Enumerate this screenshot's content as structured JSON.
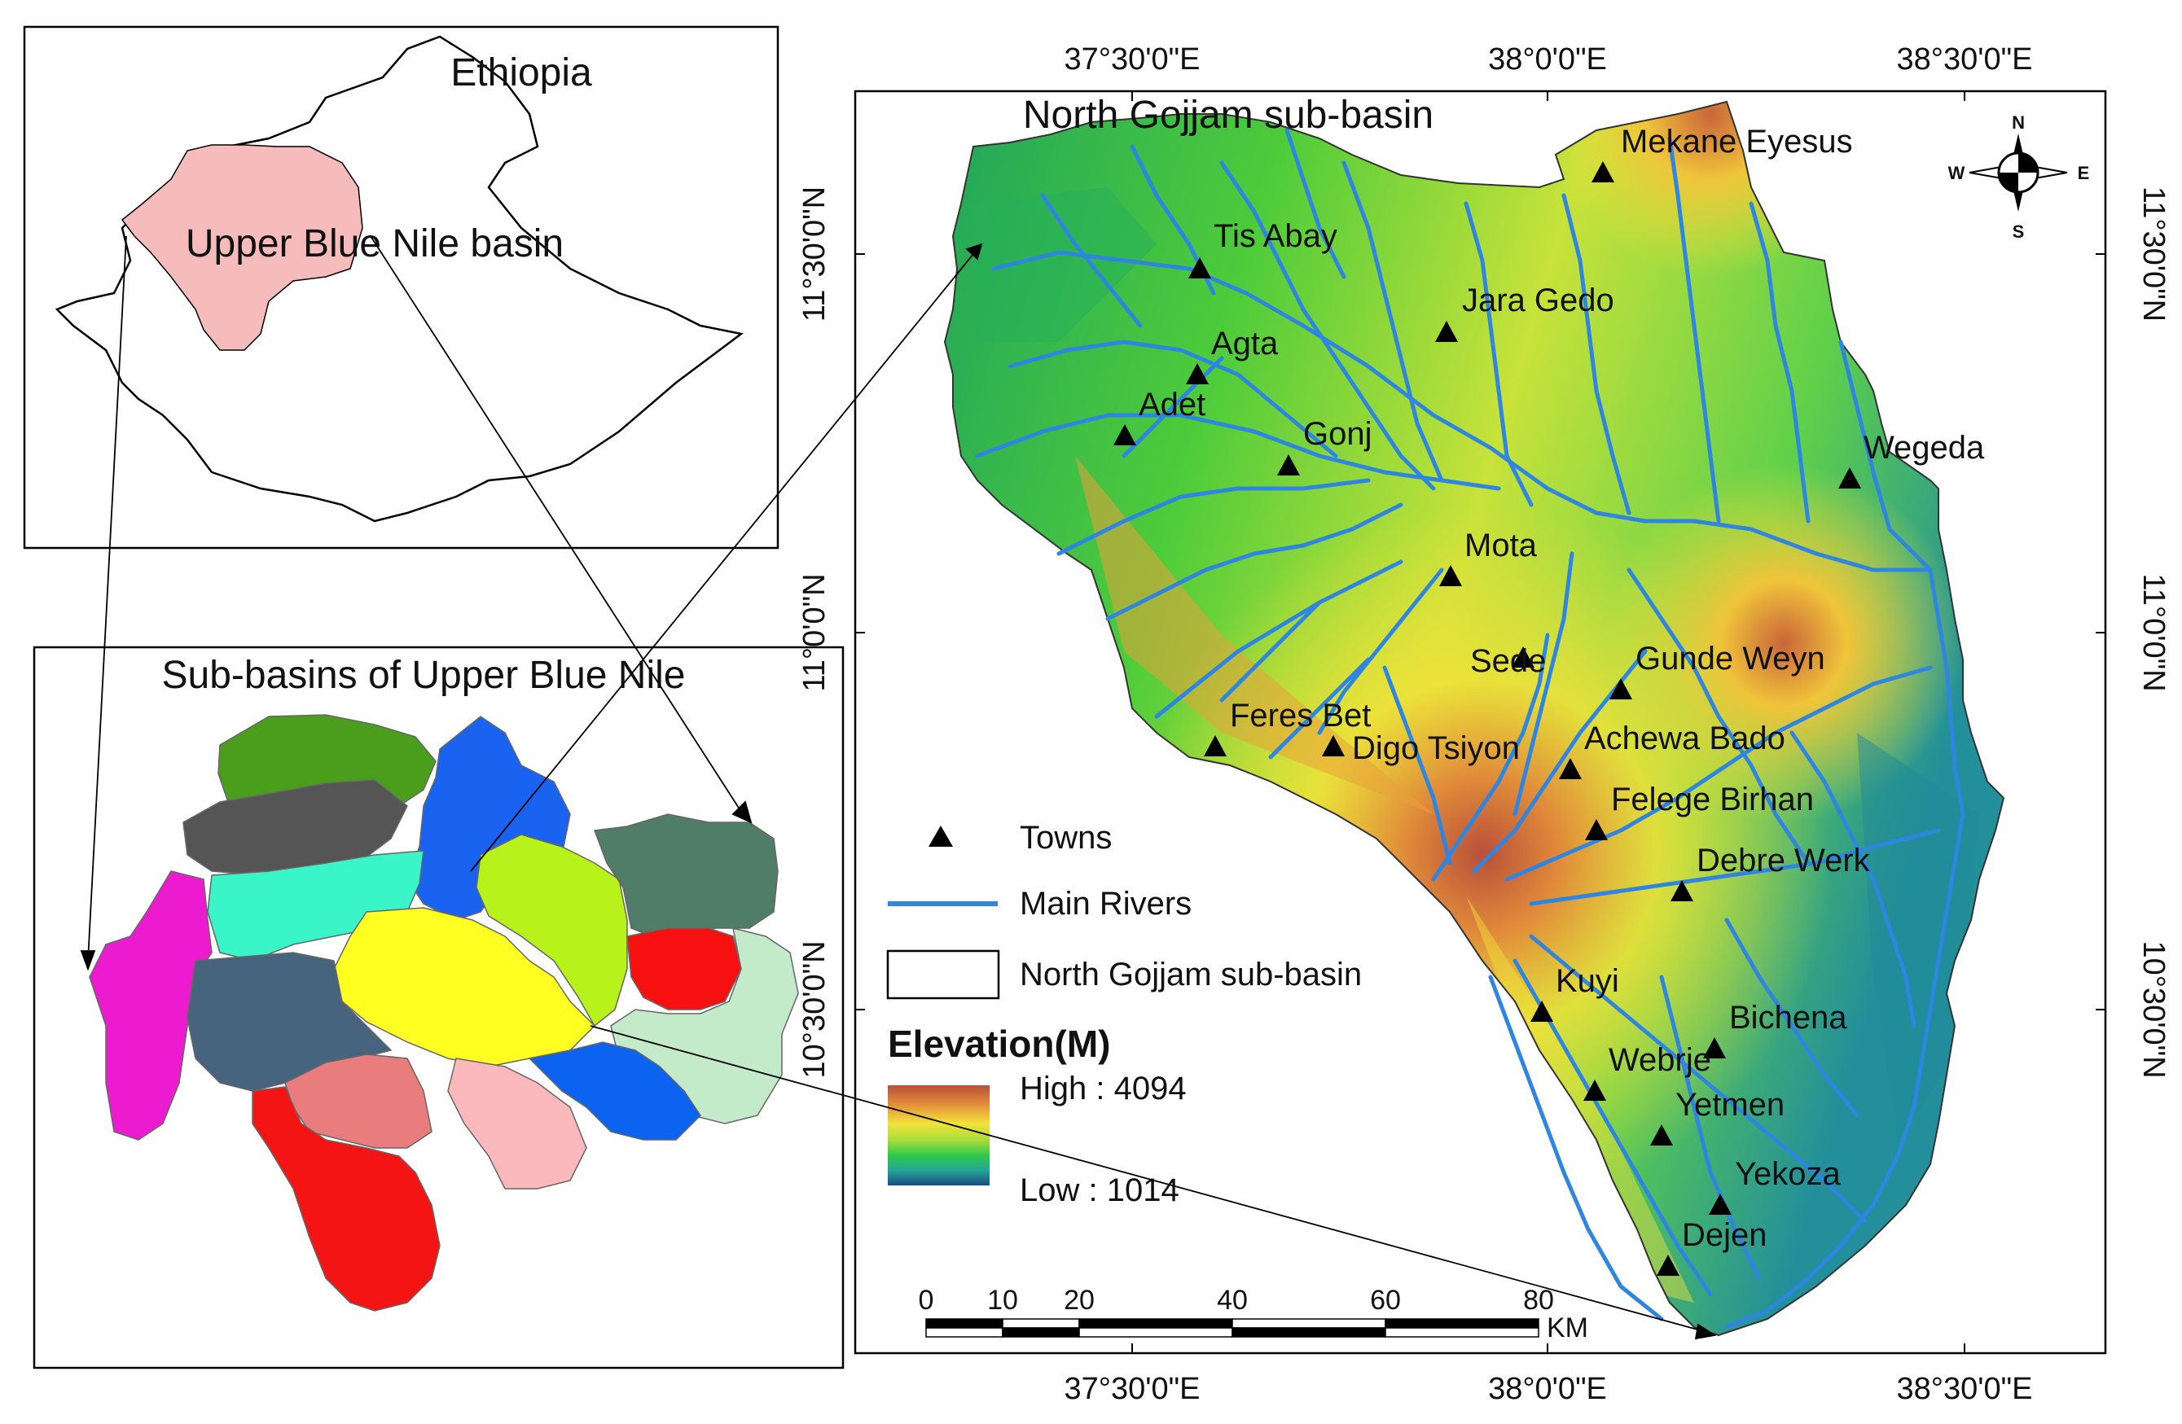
{
  "colors": {
    "river": "#2f86e0",
    "town_marker": "#000000",
    "ramp": [
      "#b8503a",
      "#e08a3a",
      "#f3e23a",
      "#a8dc3a",
      "#2fc94a",
      "#25a597",
      "#1a4a86"
    ],
    "frame": "#000000"
  },
  "inset_ethiopia": {
    "title": "Ethiopia",
    "basin_label": "Upper Blue Nile basin",
    "basin_color": "#f6bcbc"
  },
  "inset_subbasins": {
    "title": "Sub-basins of Upper Blue Nile",
    "subbasin_colors": [
      "#4a9e1c",
      "#555555",
      "#1a63f0",
      "#39f5c8",
      "#b7f21a",
      "#4f7d67",
      "#ec1bcf",
      "#ffff22",
      "#f71010",
      "#47647f",
      "#c3ebc9",
      "#e97d7d",
      "#fbb9bd",
      "#0c63f0",
      "#f41414"
    ]
  },
  "main_map": {
    "title": "North Gojjam sub-basin",
    "north_arrow": {
      "n": "N",
      "s": "S",
      "e": "E",
      "w": "W"
    },
    "lon_labels_top": [
      "37°30'0\"E",
      "38°0'0\"E",
      "38°30'0\"E"
    ],
    "lon_labels_bottom": [
      "37°30'0\"E",
      "38°0'0\"E",
      "38°30'0\"E"
    ],
    "lat_labels_left": [
      "11°30'0\"N",
      "11°0'0\"N",
      "10°30'0\"N"
    ],
    "lat_labels_right": [
      "11°30'0\"N",
      "11°0'0\"N",
      "10°30'0\"N"
    ],
    "towns": [
      "Mekane Eyesus",
      "Tis Abay",
      "Jara Gedo",
      "Agta",
      "Adet",
      "Gonj",
      "Wegeda",
      "Mota",
      "Sede",
      "Gunde Weyn",
      "Feres Bet",
      "Digo Tsiyon",
      "Achewa Bado",
      "Felege Birhan",
      "Debre Werk",
      "Kuyi",
      "Bichena",
      "Webrje",
      "Yetmen",
      "Yekoza",
      "Dejen"
    ],
    "legend": {
      "towns": "Towns",
      "rivers": "Main Rivers",
      "subbasin": "North Gojjam sub-basin",
      "elevation_title": "Elevation(M)",
      "high_label": "High : 4094",
      "low_label": "Low : 1014",
      "high_value": 4094,
      "low_value": 1014
    },
    "scale_bar": {
      "ticks": [
        "0",
        "10",
        "20",
        "40",
        "60",
        "80"
      ],
      "unit": "KM"
    }
  }
}
